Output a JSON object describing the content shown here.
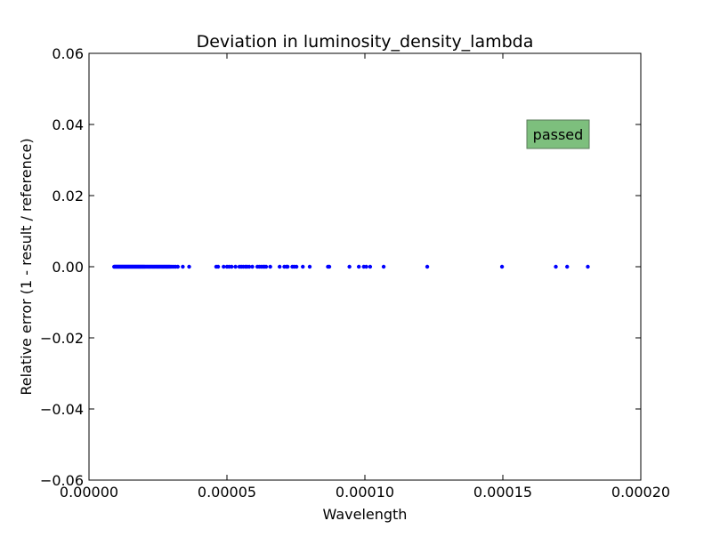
{
  "chart_data": {
    "type": "scatter",
    "title": "Deviation in luminosity_density_lambda",
    "xlabel": "Wavelength",
    "ylabel": "Relative error (1 - result / reference)",
    "xlim": [
      0,
      0.0002
    ],
    "ylim": [
      -0.06,
      0.06
    ],
    "x_ticks": [
      {
        "value": 0,
        "label": "0.00000"
      },
      {
        "value": 5e-05,
        "label": "0.00005"
      },
      {
        "value": 0.0001,
        "label": "0.00010"
      },
      {
        "value": 0.00015,
        "label": "0.00015"
      },
      {
        "value": 0.0002,
        "label": "0.00020"
      }
    ],
    "y_ticks": [
      {
        "value": 0.06,
        "label": "0.06"
      },
      {
        "value": 0.04,
        "label": "0.04"
      },
      {
        "value": 0.02,
        "label": "0.02"
      },
      {
        "value": 0,
        "label": "0.00"
      },
      {
        "value": -0.02,
        "label": "−0.02"
      },
      {
        "value": -0.04,
        "label": "−0.04"
      },
      {
        "value": -0.06,
        "label": "−0.06"
      }
    ],
    "grid": false,
    "marker_color": "#0000ff",
    "series": [
      {
        "points": [
          [
            9.1e-06,
            0
          ],
          [
            9.4e-06,
            0
          ],
          [
            9.7e-06,
            0
          ],
          [
            1e-05,
            0
          ],
          [
            1.03e-05,
            0
          ],
          [
            1.06e-05,
            0
          ],
          [
            1.09e-05,
            0
          ],
          [
            1.12e-05,
            0
          ],
          [
            1.15e-05,
            0
          ],
          [
            1.18e-05,
            0
          ],
          [
            1.21e-05,
            0
          ],
          [
            1.24e-05,
            0
          ],
          [
            1.27e-05,
            0
          ],
          [
            1.3e-05,
            0
          ],
          [
            1.33e-05,
            0
          ],
          [
            1.36e-05,
            0
          ],
          [
            1.39e-05,
            0
          ],
          [
            1.42e-05,
            0
          ],
          [
            1.45e-05,
            0
          ],
          [
            1.48e-05,
            0
          ],
          [
            1.51e-05,
            0
          ],
          [
            1.54e-05,
            0
          ],
          [
            1.57e-05,
            0
          ],
          [
            1.6e-05,
            0
          ],
          [
            1.63e-05,
            0
          ],
          [
            1.66e-05,
            0
          ],
          [
            1.69e-05,
            0
          ],
          [
            1.72e-05,
            0
          ],
          [
            1.75e-05,
            0
          ],
          [
            1.78e-05,
            0
          ],
          [
            1.81e-05,
            0
          ],
          [
            1.84e-05,
            0
          ],
          [
            1.87e-05,
            0
          ],
          [
            1.9e-05,
            0
          ],
          [
            1.93e-05,
            0
          ],
          [
            1.96e-05,
            0
          ],
          [
            1.99e-05,
            0
          ],
          [
            2.02e-05,
            0
          ],
          [
            2.06e-05,
            0
          ],
          [
            2.1e-05,
            0
          ],
          [
            2.14e-05,
            0
          ],
          [
            2.18e-05,
            0
          ],
          [
            2.22e-05,
            0
          ],
          [
            2.26e-05,
            0
          ],
          [
            2.3e-05,
            0
          ],
          [
            2.34e-05,
            0
          ],
          [
            2.38e-05,
            0
          ],
          [
            2.42e-05,
            0
          ],
          [
            2.46e-05,
            0
          ],
          [
            2.5e-05,
            0
          ],
          [
            2.54e-05,
            0
          ],
          [
            2.58e-05,
            0
          ],
          [
            2.62e-05,
            0
          ],
          [
            2.66e-05,
            0
          ],
          [
            2.7e-05,
            0
          ],
          [
            2.74e-05,
            0
          ],
          [
            2.78e-05,
            0
          ],
          [
            2.82e-05,
            0
          ],
          [
            2.86e-05,
            0
          ],
          [
            2.9e-05,
            0
          ],
          [
            2.94e-05,
            0
          ],
          [
            3e-05,
            0
          ],
          [
            3.07e-05,
            0
          ],
          [
            3.14e-05,
            0
          ],
          [
            3.22e-05,
            0
          ],
          [
            3.4e-05,
            0
          ],
          [
            3.63e-05,
            0
          ],
          [
            4.61e-05,
            0
          ],
          [
            4.68e-05,
            0
          ],
          [
            4.88e-05,
            0
          ],
          [
            5e-05,
            0
          ],
          [
            5.08e-05,
            0
          ],
          [
            5.17e-05,
            0
          ],
          [
            5.31e-05,
            0
          ],
          [
            5.45e-05,
            0
          ],
          [
            5.52e-05,
            0
          ],
          [
            5.59e-05,
            0
          ],
          [
            5.67e-05,
            0
          ],
          [
            5.73e-05,
            0
          ],
          [
            5.81e-05,
            0
          ],
          [
            5.92e-05,
            0
          ],
          [
            6.1e-05,
            0
          ],
          [
            6.17e-05,
            0
          ],
          [
            6.24e-05,
            0
          ],
          [
            6.31e-05,
            0
          ],
          [
            6.36e-05,
            0
          ],
          [
            6.42e-05,
            0
          ],
          [
            6.57e-05,
            0
          ],
          [
            6.91e-05,
            0
          ],
          [
            7.08e-05,
            0
          ],
          [
            7.16e-05,
            0
          ],
          [
            7.2e-05,
            0
          ],
          [
            7.37e-05,
            0
          ],
          [
            7.44e-05,
            0
          ],
          [
            7.52e-05,
            0
          ],
          [
            7.75e-05,
            0
          ],
          [
            8e-05,
            0
          ],
          [
            8.66e-05,
            0
          ],
          [
            8.71e-05,
            0
          ],
          [
            9.44e-05,
            0
          ],
          [
            9.78e-05,
            0
          ],
          [
            9.96e-05,
            0
          ],
          [
            0.0001005,
            0
          ],
          [
            0.0001019,
            0
          ],
          [
            0.0001068,
            0
          ],
          [
            0.0001226,
            0
          ],
          [
            0.0001497,
            0
          ],
          [
            0.0001692,
            0
          ],
          [
            0.0001733,
            0
          ],
          [
            0.0001808,
            0
          ]
        ]
      }
    ],
    "annotation": {
      "text": "passed",
      "x": 0.00017,
      "y": 0.037,
      "facecolor": "#7dbf7d",
      "edgecolor": "#5a7a5a"
    }
  }
}
